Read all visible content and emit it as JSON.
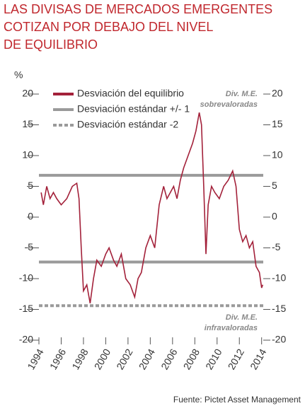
{
  "chart_data": {
    "type": "line",
    "title": [
      "LAS DIVISAS DE MERCADOS EMERGENTES",
      "COTIZAN POR DEBAJO DEL NIVEL",
      "DE EQUILIBRIO"
    ],
    "y_label": "%",
    "source": "Fuente: Pictet Asset Management",
    "annotations": [
      {
        "lines": [
          "Div. M.E.",
          "sobrevaloradas"
        ]
      },
      {
        "lines": [
          "Div. M.E.",
          "infravaloradas"
        ]
      }
    ],
    "x": [
      1994.2,
      1994.4,
      1994.7,
      1995.0,
      1995.3,
      1995.6,
      1996.0,
      1996.5,
      1997.0,
      1997.4,
      1997.6,
      1997.8,
      1998.0,
      1998.3,
      1998.6,
      1998.9,
      1999.2,
      1999.6,
      2000.0,
      2000.3,
      2000.7,
      2001.0,
      2001.4,
      2001.8,
      2002.2,
      2002.6,
      2002.9,
      2003.2,
      2003.6,
      2004.0,
      2004.4,
      2004.8,
      2005.2,
      2005.5,
      2005.8,
      2006.1,
      2006.4,
      2006.7,
      2007.0,
      2007.4,
      2007.8,
      2008.1,
      2008.4,
      2008.6,
      2008.8,
      2009.0,
      2009.2,
      2009.5,
      2009.8,
      2010.2,
      2010.6,
      2011.0,
      2011.4,
      2011.7,
      2012.0,
      2012.3,
      2012.6,
      2012.9,
      2013.2,
      2013.5,
      2013.8,
      2014.0,
      2014.1
    ],
    "series": [
      {
        "name": "Desviación del equilibrio",
        "color": "#a3213a",
        "values": [
          4,
          2,
          5,
          3,
          4,
          3,
          2,
          3,
          5,
          5.5,
          3,
          -5,
          -12,
          -11,
          -14,
          -10,
          -7,
          -8,
          -6,
          -5,
          -7,
          -8,
          -6,
          -10,
          -11,
          -13,
          -10,
          -9,
          -5,
          -3,
          -5,
          2,
          5,
          3,
          4,
          5,
          3,
          6,
          8,
          10,
          12,
          14,
          17,
          15,
          5,
          -6,
          2,
          5,
          4,
          3,
          5,
          6,
          7.5,
          5,
          -2,
          -4,
          -3,
          -5,
          -4,
          -8,
          -9,
          -11.5,
          -11
        ]
      }
    ],
    "reference_lines": [
      {
        "name": "Desviación estándar +/- 1",
        "color": "#9a9a9a",
        "dashed": false,
        "values": [
          6.8,
          -7.3
        ]
      },
      {
        "name": "Desviación estándar -2",
        "color": "#9a9a9a",
        "dashed": true,
        "values": [
          -14.4
        ]
      }
    ],
    "xlim": [
      1994,
      2014.4
    ],
    "xticks": [
      1994,
      1996,
      1998,
      2000,
      2002,
      2004,
      2006,
      2008,
      2010,
      2012,
      2014
    ],
    "ylim": [
      -20,
      20
    ],
    "yticks": [
      -20,
      -15,
      -10,
      -5,
      0,
      5,
      10,
      15,
      20
    ]
  }
}
